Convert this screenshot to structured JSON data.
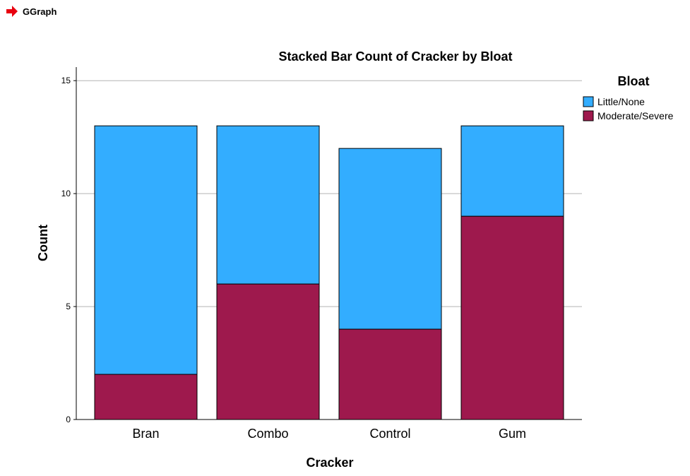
{
  "header": {
    "title": "GGraph",
    "icon": "red-arrow-icon"
  },
  "chart_data": {
    "type": "bar",
    "stacked": true,
    "title": "Stacked Bar Count of Cracker by Bloat",
    "xlabel": "Cracker",
    "ylabel": "Count",
    "ylim": [
      0,
      15.6
    ],
    "yticks": [
      0,
      5,
      10,
      15
    ],
    "grid": true,
    "legend_title": "Bloat",
    "legend_position": "right",
    "categories": [
      "Bran",
      "Combo",
      "Control",
      "Gum"
    ],
    "series": [
      {
        "name": "Moderate/Severe",
        "values": [
          2,
          6,
          4,
          9
        ],
        "color": "#9e194d"
      },
      {
        "name": "Little/None",
        "values": [
          11,
          7,
          8,
          4
        ],
        "color": "#33adff"
      }
    ],
    "legend_order": [
      "Little/None",
      "Moderate/Severe"
    ]
  }
}
